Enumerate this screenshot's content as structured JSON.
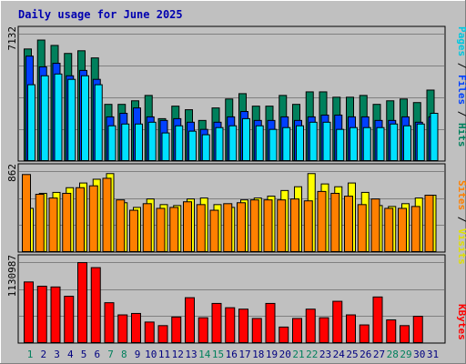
{
  "chart_data": [
    {
      "type": "bar",
      "panel": "hits-files-pages",
      "title": "Daily usage for June 2025",
      "ylabel_max": "7132",
      "ylim": [
        0,
        7132
      ],
      "categories": [
        "1",
        "2",
        "3",
        "4",
        "5",
        "6",
        "7",
        "8",
        "9",
        "10",
        "11",
        "12",
        "13",
        "14",
        "15",
        "16",
        "17",
        "18",
        "19",
        "20",
        "21",
        "22",
        "23",
        "24",
        "25",
        "26",
        "27",
        "28",
        "29",
        "30",
        "31"
      ],
      "series": [
        {
          "name": "Hits",
          "color": "#00805c",
          "values": [
            6300,
            6800,
            6500,
            6050,
            6200,
            5800,
            3200,
            3200,
            3400,
            3700,
            2400,
            3100,
            2900,
            2300,
            3000,
            3500,
            3800,
            3100,
            3100,
            3700,
            3200,
            3900,
            3900,
            3600,
            3600,
            3700,
            3200,
            3400,
            3500,
            3300,
            4000
          ]
        },
        {
          "name": "Files",
          "color": "#0040ff",
          "values": [
            5900,
            5300,
            5500,
            4800,
            5100,
            4600,
            2500,
            2700,
            3000,
            2500,
            2300,
            2400,
            2200,
            1800,
            2200,
            2500,
            2800,
            2300,
            2300,
            2500,
            2300,
            2500,
            2600,
            2600,
            2500,
            2500,
            2300,
            2300,
            2500,
            2200,
            2500
          ]
        },
        {
          "name": "Pages",
          "color": "#00e0ff",
          "values": [
            4300,
            4800,
            4900,
            4600,
            4800,
            4300,
            2000,
            2100,
            2100,
            2200,
            1600,
            2000,
            1700,
            1500,
            1900,
            2000,
            2400,
            2000,
            1800,
            1900,
            2000,
            2200,
            2200,
            1800,
            1900,
            1900,
            1900,
            2100,
            2000,
            2100,
            2700
          ]
        }
      ]
    },
    {
      "type": "bar",
      "panel": "visits-sites",
      "ylabel_max": "862",
      "ylim": [
        0,
        862
      ],
      "categories": [
        "1",
        "2",
        "3",
        "4",
        "5",
        "6",
        "7",
        "8",
        "9",
        "10",
        "11",
        "12",
        "13",
        "14",
        "15",
        "16",
        "17",
        "18",
        "19",
        "20",
        "21",
        "22",
        "23",
        "24",
        "25",
        "26",
        "27",
        "28",
        "29",
        "30",
        "31"
      ],
      "series": [
        {
          "name": "Visits",
          "color": "#ffff00",
          "values": [
            470,
            630,
            640,
            690,
            740,
            780,
            840,
            530,
            480,
            570,
            510,
            500,
            570,
            580,
            510,
            480,
            560,
            580,
            600,
            660,
            700,
            840,
            730,
            700,
            740,
            640,
            500,
            490,
            520,
            580,
            610
          ]
        },
        {
          "name": "Sites",
          "color": "#ff8000",
          "values": [
            830,
            620,
            580,
            630,
            690,
            710,
            790,
            560,
            450,
            520,
            470,
            480,
            540,
            510,
            450,
            520,
            530,
            560,
            560,
            560,
            570,
            550,
            650,
            630,
            600,
            510,
            570,
            470,
            470,
            490,
            610
          ]
        }
      ]
    },
    {
      "type": "bar",
      "panel": "kbytes",
      "ylabel_max": "1130987",
      "ylim": [
        0,
        1130987
      ],
      "categories": [
        "1",
        "2",
        "3",
        "4",
        "5",
        "6",
        "7",
        "8",
        "9",
        "10",
        "11",
        "12",
        "13",
        "14",
        "15",
        "16",
        "17",
        "18",
        "19",
        "20",
        "21",
        "22",
        "23",
        "24",
        "25",
        "26",
        "27",
        "28",
        "29",
        "30",
        "31"
      ],
      "series": [
        {
          "name": "KBytes",
          "color": "#ff0000",
          "values": [
            860000,
            800000,
            790000,
            660000,
            1130000,
            1060000,
            570000,
            400000,
            420000,
            300000,
            250000,
            370000,
            640000,
            360000,
            560000,
            500000,
            480000,
            350000,
            560000,
            230000,
            350000,
            480000,
            360000,
            590000,
            400000,
            260000,
            650000,
            330000,
            250000,
            380000,
            0
          ]
        }
      ]
    }
  ],
  "x_axis": {
    "labels": [
      "1",
      "2",
      "3",
      "4",
      "5",
      "6",
      "7",
      "8",
      "9",
      "10",
      "11",
      "12",
      "13",
      "14",
      "15",
      "16",
      "17",
      "18",
      "19",
      "20",
      "21",
      "22",
      "23",
      "24",
      "25",
      "26",
      "27",
      "28",
      "29",
      "30",
      "31"
    ],
    "weekend_days": [
      1,
      7,
      8,
      14,
      15,
      21,
      22,
      28,
      29
    ],
    "weekend_color": "#00805c",
    "weekday_color": "#000080"
  },
  "legend_right": {
    "panel1": [
      {
        "text": "Pages",
        "color": "#00c8e0"
      },
      {
        "text": " / ",
        "color": "#000000"
      },
      {
        "text": "Files",
        "color": "#0040ff"
      },
      {
        "text": " / ",
        "color": "#000000"
      },
      {
        "text": "Hits",
        "color": "#00805c"
      }
    ],
    "panel2": [
      {
        "text": "Sites",
        "color": "#ff8000"
      },
      {
        "text": " / ",
        "color": "#000000"
      },
      {
        "text": "Visits",
        "color": "#e0e000"
      }
    ],
    "panel3": [
      {
        "text": "KBytes",
        "color": "#ff0000"
      }
    ]
  }
}
